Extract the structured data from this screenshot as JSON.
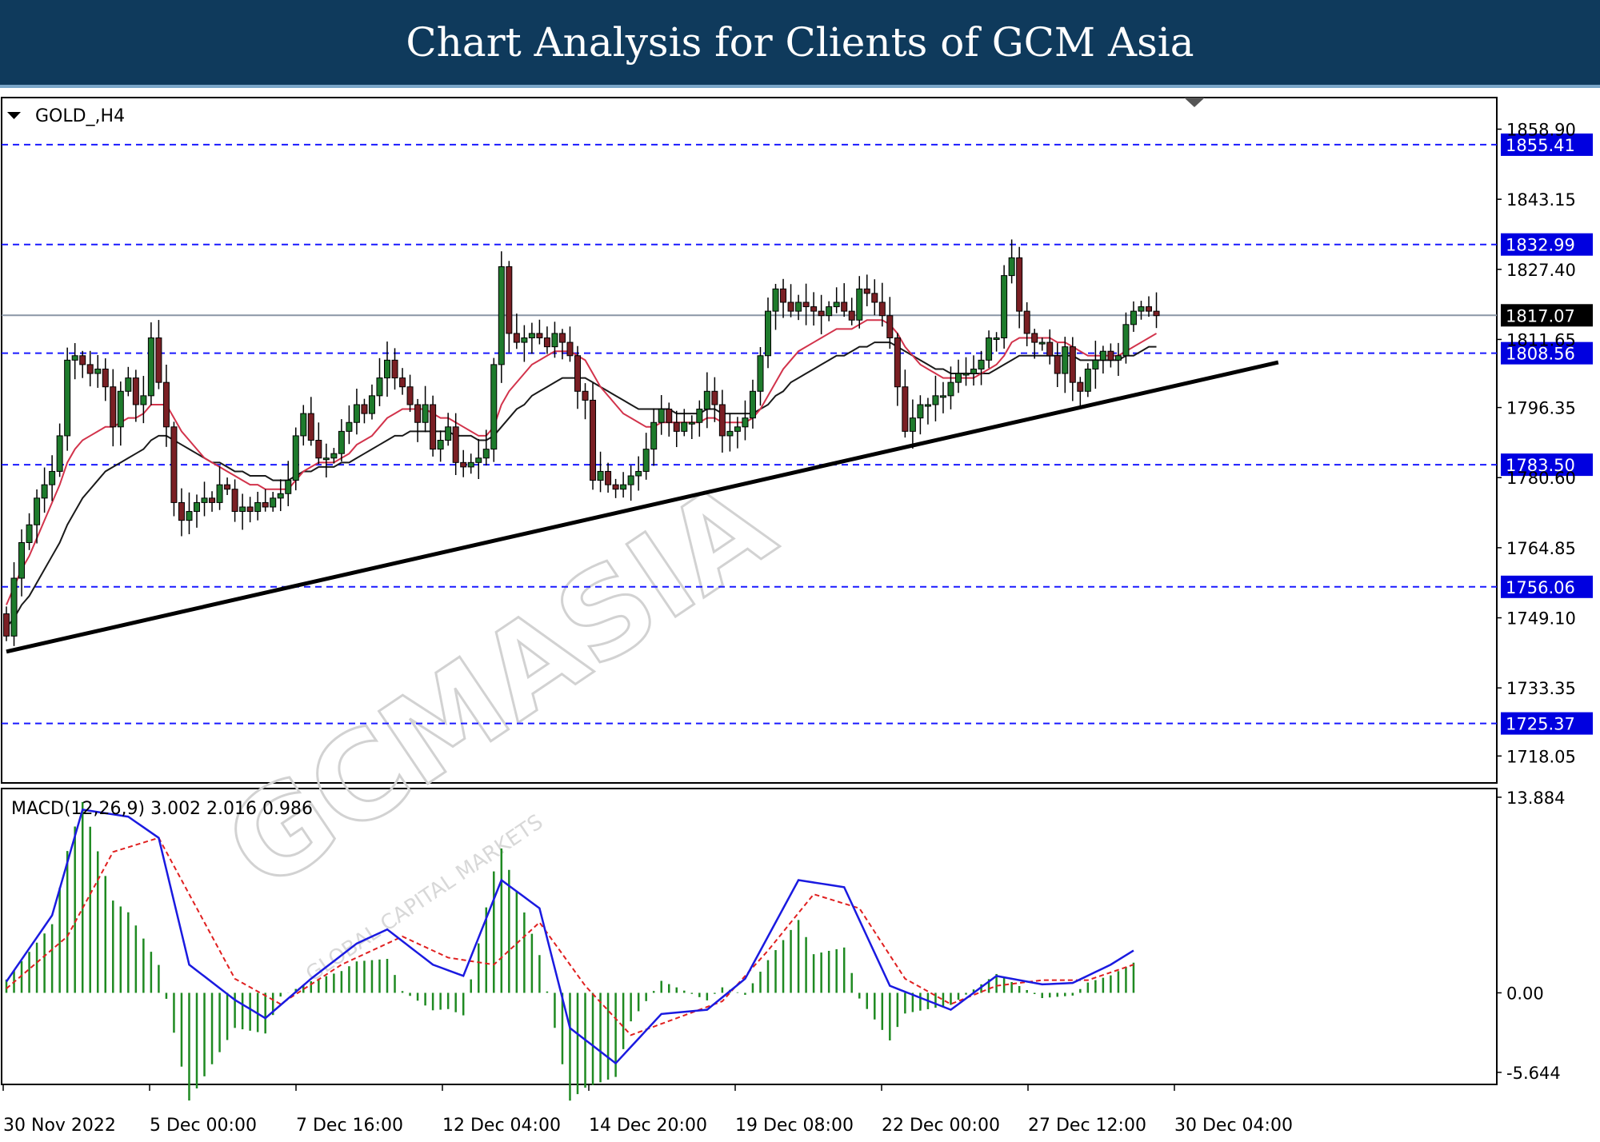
{
  "header": {
    "title": "Chart Analysis for Clients of GCM Asia"
  },
  "chart_data": {
    "type": "candlestick",
    "symbol": "GOLD_,H4",
    "watermark": "GCMASIA GLOBAL CAPITAL MARKETS",
    "ylim": [
      1712,
      1866
    ],
    "y_ticks": [
      "1858.90",
      "1843.15",
      "1827.40",
      "1811.65",
      "1796.35",
      "1780.60",
      "1764.85",
      "1749.10",
      "1733.35",
      "1718.05"
    ],
    "x_ticks": [
      "30 Nov 2022",
      "5 Dec 00:00",
      "7 Dec 16:00",
      "12 Dec 04:00",
      "14 Dec 20:00",
      "19 Dec 08:00",
      "22 Dec 00:00",
      "27 Dec 12:00",
      "30 Dec 04:00"
    ],
    "levels": [
      {
        "value": 1855.41,
        "label": "1855.41"
      },
      {
        "value": 1832.99,
        "label": "1832.99"
      },
      {
        "value": 1808.56,
        "label": "1808.56"
      },
      {
        "value": 1783.5,
        "label": "1783.50"
      },
      {
        "value": 1756.06,
        "label": "1756.06"
      },
      {
        "value": 1725.37,
        "label": "1725.37"
      }
    ],
    "current_price": {
      "value": 1817.07,
      "label": "1817.07"
    },
    "trendline": {
      "from": [
        0,
        1741.5
      ],
      "to": [
        167,
        1806.5
      ]
    },
    "closes": [
      1745,
      1758,
      1766,
      1770,
      1776,
      1779,
      1782,
      1790,
      1807,
      1808,
      1806,
      1804,
      1805,
      1801,
      1792,
      1800,
      1803,
      1797,
      1799,
      1812,
      1802,
      1792,
      1775,
      1771,
      1773,
      1775,
      1776,
      1775,
      1779,
      1778,
      1773,
      1774,
      1773,
      1775,
      1774,
      1776,
      1777,
      1780,
      1790,
      1795,
      1789,
      1785,
      1785,
      1786,
      1791,
      1793,
      1797,
      1795,
      1799,
      1803,
      1807,
      1803,
      1801,
      1797,
      1793,
      1797,
      1787,
      1789,
      1792,
      1784,
      1783,
      1784,
      1785,
      1787,
      1806,
      1828,
      1813,
      1811,
      1812,
      1813,
      1812,
      1810,
      1813,
      1811,
      1808,
      1800,
      1798,
      1780,
      1782,
      1779,
      1778,
      1779,
      1781,
      1782,
      1787,
      1793,
      1796,
      1793,
      1791,
      1793,
      1793,
      1796,
      1800,
      1797,
      1790,
      1791,
      1792,
      1794,
      1800,
      1808,
      1818,
      1823,
      1820,
      1818,
      1820,
      1819,
      1818,
      1817,
      1819,
      1820,
      1818,
      1816,
      1823,
      1822,
      1820,
      1817,
      1812,
      1801,
      1791,
      1794,
      1797,
      1797,
      1799,
      1799,
      1802,
      1804,
      1804,
      1805,
      1807,
      1812,
      1812,
      1826,
      1830,
      1818,
      1813,
      1811,
      1811,
      1808,
      1804,
      1810,
      1802,
      1800,
      1805,
      1807,
      1809,
      1807,
      1808,
      1815,
      1818,
      1819,
      1818,
      1817
    ],
    "ma_fast": [
      1752,
      1756,
      1760,
      1763,
      1767,
      1771,
      1775,
      1779,
      1784,
      1787,
      1789,
      1790,
      1791,
      1792,
      1792,
      1793,
      1794,
      1794,
      1795,
      1797,
      1797,
      1797,
      1794,
      1791,
      1789,
      1787,
      1785,
      1784,
      1783,
      1782,
      1781,
      1780,
      1779,
      1779,
      1778,
      1778,
      1778,
      1778,
      1780,
      1782,
      1783,
      1784,
      1784,
      1784,
      1785,
      1786,
      1788,
      1789,
      1790,
      1792,
      1794,
      1795,
      1796,
      1796,
      1796,
      1796,
      1795,
      1794,
      1794,
      1793,
      1792,
      1791,
      1790,
      1790,
      1792,
      1797,
      1800,
      1802,
      1804,
      1806,
      1807,
      1808,
      1809,
      1809,
      1809,
      1808,
      1807,
      1804,
      1801,
      1799,
      1797,
      1795,
      1794,
      1793,
      1792,
      1792,
      1793,
      1793,
      1793,
      1793,
      1793,
      1793,
      1794,
      1794,
      1793,
      1793,
      1793,
      1793,
      1794,
      1796,
      1799,
      1802,
      1805,
      1807,
      1809,
      1810,
      1811,
      1812,
      1813,
      1814,
      1814,
      1814,
      1815,
      1816,
      1816,
      1816,
      1815,
      1813,
      1810,
      1808,
      1806,
      1805,
      1804,
      1803,
      1803,
      1803,
      1803,
      1803,
      1804,
      1805,
      1806,
      1808,
      1811,
      1812,
      1812,
      1812,
      1812,
      1812,
      1811,
      1811,
      1810,
      1809,
      1808,
      1808,
      1808,
      1808,
      1808,
      1809,
      1810,
      1811,
      1812,
      1813
    ],
    "ma_slow": [
      1747,
      1749,
      1752,
      1754,
      1757,
      1760,
      1763,
      1766,
      1770,
      1773,
      1776,
      1778,
      1780,
      1782,
      1783,
      1784,
      1785,
      1786,
      1787,
      1789,
      1790,
      1790,
      1789,
      1788,
      1787,
      1786,
      1785,
      1784,
      1784,
      1783,
      1782,
      1782,
      1781,
      1781,
      1781,
      1780,
      1780,
      1780,
      1781,
      1782,
      1782,
      1783,
      1783,
      1783,
      1784,
      1784,
      1785,
      1786,
      1787,
      1788,
      1789,
      1790,
      1790,
      1791,
      1791,
      1791,
      1791,
      1791,
      1791,
      1790,
      1790,
      1790,
      1789,
      1789,
      1790,
      1792,
      1794,
      1796,
      1797,
      1799,
      1800,
      1801,
      1802,
      1803,
      1803,
      1803,
      1803,
      1802,
      1801,
      1800,
      1799,
      1798,
      1797,
      1796,
      1796,
      1796,
      1796,
      1796,
      1795,
      1795,
      1795,
      1795,
      1796,
      1796,
      1795,
      1795,
      1795,
      1795,
      1795,
      1796,
      1797,
      1799,
      1800,
      1802,
      1803,
      1804,
      1805,
      1806,
      1807,
      1808,
      1808,
      1809,
      1810,
      1810,
      1811,
      1811,
      1811,
      1810,
      1809,
      1808,
      1807,
      1806,
      1805,
      1805,
      1804,
      1804,
      1804,
      1804,
      1804,
      1804,
      1805,
      1806,
      1807,
      1808,
      1808,
      1808,
      1808,
      1808,
      1808,
      1808,
      1808,
      1807,
      1807,
      1807,
      1807,
      1807,
      1807,
      1808,
      1808,
      1809,
      1810,
      1810
    ],
    "macd": {
      "label": "MACD(12,26,9) 3.002 2.016 0.986",
      "ylim": [
        -6.5,
        14.5
      ],
      "y_ticks": [
        "13.884",
        "0.00",
        "-5.644"
      ],
      "macd_knots": [
        [
          0,
          0.8
        ],
        [
          6,
          5.5
        ],
        [
          10,
          13
        ],
        [
          16,
          12.5
        ],
        [
          20,
          11
        ],
        [
          24,
          2
        ],
        [
          30,
          -0.5
        ],
        [
          34,
          -1.8
        ],
        [
          40,
          1
        ],
        [
          46,
          3.5
        ],
        [
          50,
          4.5
        ],
        [
          56,
          2
        ],
        [
          60,
          1.2
        ],
        [
          65,
          8
        ],
        [
          70,
          6
        ],
        [
          74,
          -2.5
        ],
        [
          80,
          -5
        ],
        [
          86,
          -1.5
        ],
        [
          92,
          -1.2
        ],
        [
          97,
          1
        ],
        [
          104,
          8
        ],
        [
          110,
          7.5
        ],
        [
          116,
          0.5
        ],
        [
          124,
          -1.2
        ],
        [
          130,
          1.2
        ],
        [
          136,
          0.6
        ],
        [
          140,
          0.7
        ],
        [
          145,
          2.0
        ],
        [
          148,
          3.0
        ]
      ],
      "signal_knots": [
        [
          0,
          0.3
        ],
        [
          8,
          4
        ],
        [
          14,
          10
        ],
        [
          20,
          11
        ],
        [
          24,
          7
        ],
        [
          30,
          1
        ],
        [
          36,
          -0.8
        ],
        [
          44,
          2
        ],
        [
          52,
          4
        ],
        [
          58,
          2.5
        ],
        [
          64,
          2
        ],
        [
          70,
          5
        ],
        [
          76,
          0.5
        ],
        [
          82,
          -3
        ],
        [
          88,
          -1.8
        ],
        [
          94,
          -0.6
        ],
        [
          100,
          3
        ],
        [
          106,
          7
        ],
        [
          112,
          6
        ],
        [
          118,
          1
        ],
        [
          124,
          -0.8
        ],
        [
          130,
          0.5
        ],
        [
          136,
          0.9
        ],
        [
          142,
          0.9
        ],
        [
          148,
          2.0
        ]
      ]
    }
  }
}
